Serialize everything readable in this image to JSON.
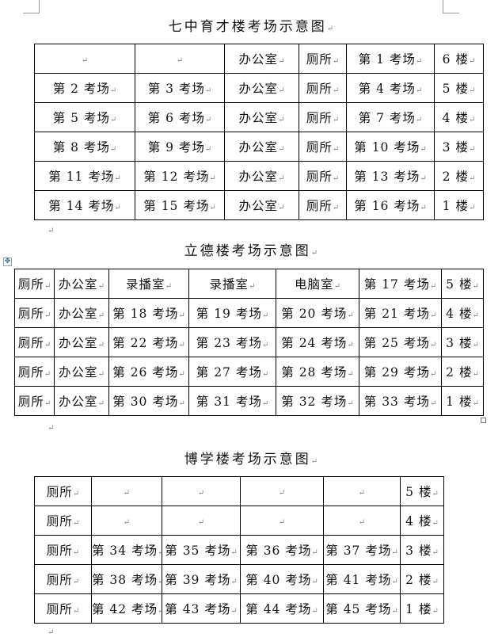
{
  "sections": [
    {
      "title": "七中育才楼考场示意图",
      "rows": [
        [
          "",
          "",
          "办公室",
          "厕所",
          "第 1 考场",
          "6 楼"
        ],
        [
          "第 2 考场",
          "第 3 考场",
          "办公室",
          "厕所",
          "第 4 考场",
          "5 楼"
        ],
        [
          "第 5 考场",
          "第 6 考场",
          "办公室",
          "厕所",
          "第 7 考场",
          "4 楼"
        ],
        [
          "第 8 考场",
          "第 9 考场",
          "办公室",
          "厕所",
          "第 10 考场",
          "3 楼"
        ],
        [
          "第 11 考场",
          "第 12 考场",
          "办公室",
          "厕所",
          "第 13 考场",
          "2 楼"
        ],
        [
          "第 14 考场",
          "第 15 考场",
          "办公室",
          "厕所",
          "第 16 考场",
          "1 楼"
        ]
      ]
    },
    {
      "title": "立德楼考场示意图",
      "rows": [
        [
          "厕所",
          "办公室",
          "录播室",
          "录播室",
          "电脑室",
          "第 17 考场",
          "5 楼"
        ],
        [
          "厕所",
          "办公室",
          "第 18 考场",
          "第 19 考场",
          "第 20 考场",
          "第 21 考场",
          "4 楼"
        ],
        [
          "厕所",
          "办公室",
          "第 22 考场",
          "第 23 考场",
          "第 24 考场",
          "第 25 考场",
          "3 楼"
        ],
        [
          "厕所",
          "办公室",
          "第 26 考场",
          "第 27 考场",
          "第 28 考场",
          "第 29 考场",
          "2 楼"
        ],
        [
          "厕所",
          "办公室",
          "第 30 考场",
          "第 31 考场",
          "第 32 考场",
          "第 33 考场",
          "1 楼"
        ]
      ]
    },
    {
      "title": "博学楼考场示意图",
      "rows": [
        [
          "厕所",
          "",
          "",
          "",
          "",
          "5 楼"
        ],
        [
          "厕所",
          "",
          "",
          "",
          "",
          "4 楼"
        ],
        [
          "厕所",
          "第 34 考场",
          "第 35 考场",
          "第 36 考场",
          "第 37 考场",
          "3 楼"
        ],
        [
          "厕所",
          "第 38 考场",
          "第 39 考场",
          "第 40 考场",
          "第 41 考场",
          "2 楼"
        ],
        [
          "厕所",
          "第 42 考场",
          "第 43 考场",
          "第 44 考场",
          "第 45 考场",
          "1 楼"
        ]
      ]
    }
  ]
}
